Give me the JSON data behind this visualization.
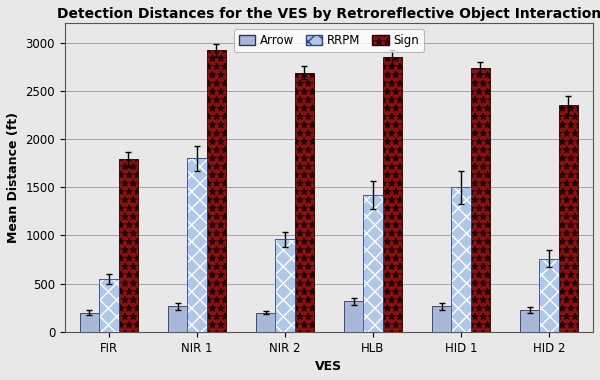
{
  "title": "Detection Distances for the VES by Retroreflective Object Interaction",
  "xlabel": "VES",
  "ylabel": "Mean Distance (ft)",
  "categories": [
    "FIR",
    "NIR 1",
    "NIR 2",
    "HLB",
    "HID 1",
    "HID 2"
  ],
  "series": {
    "Arrow": [
      200,
      265,
      200,
      315,
      265,
      230
    ],
    "RRPM": [
      545,
      1800,
      960,
      1420,
      1500,
      760
    ],
    "Sign": [
      1790,
      2920,
      2690,
      2850,
      2740,
      2350
    ]
  },
  "errors": {
    "Arrow": [
      30,
      35,
      20,
      40,
      35,
      30
    ],
    "RRPM": [
      50,
      130,
      80,
      150,
      170,
      85
    ],
    "Sign": [
      80,
      65,
      70,
      80,
      65,
      100
    ]
  },
  "ylim": [
    0,
    3200
  ],
  "yticks": [
    0,
    500,
    1000,
    1500,
    2000,
    2500,
    3000
  ],
  "bar_width": 0.22,
  "title_fontsize": 10,
  "axis_fontsize": 9,
  "tick_fontsize": 8.5
}
